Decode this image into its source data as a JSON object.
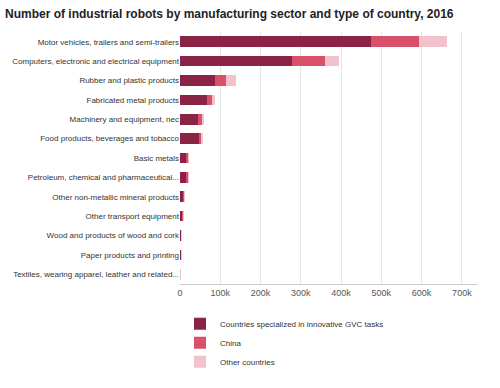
{
  "chart_data": {
    "type": "bar",
    "title": "Number of industrial robots by manufacturing sector and type of country, 2016",
    "orientation": "horizontal",
    "stacked": true,
    "grid": true,
    "legend": "bottom",
    "categories": [
      "Motor vehicles, trailers and semi-trailers",
      "Computers, electronic and electrical equipment",
      "Rubber and plastic products",
      "Fabricated metal products",
      "Machinery and equipment, nec",
      "Food products, beverages and tobacco",
      "Basic metals",
      "Petroleum, chemical and pharmaceutical...",
      "Other non-metallic mineral products",
      "Other transport equipment",
      "Wood and products of wood and cork",
      "Paper products and printing",
      "Textiles, wearing apparel, leather and related..."
    ],
    "series": [
      {
        "name": "Countries specialized in innovative GVC tasks",
        "color": "#8b2346",
        "values": [
          475000,
          278000,
          88000,
          68000,
          45000,
          48000,
          17000,
          17000,
          9000,
          7000,
          3000,
          3000,
          1000
        ]
      },
      {
        "name": "China",
        "color": "#d9506a",
        "values": [
          118000,
          82000,
          25000,
          12000,
          10000,
          5000,
          3000,
          3000,
          2000,
          1000,
          500,
          500,
          300
        ]
      },
      {
        "name": "Other countries",
        "color": "#f2c2cc",
        "values": [
          70000,
          35000,
          27000,
          7000,
          4000,
          3000,
          1000,
          1000,
          1000,
          1000,
          300,
          300,
          200
        ]
      }
    ],
    "xlim": [
      0,
      740000
    ],
    "xticks": [
      0,
      {
        "value": 100000,
        "label": "100k"
      },
      {
        "value": 200000,
        "label": "200k"
      },
      {
        "value": 300000,
        "label": "300k"
      },
      {
        "value": 400000,
        "label": "400k"
      },
      {
        "value": 500000,
        "label": "500k"
      },
      {
        "value": 600000,
        "label": "600k"
      },
      {
        "value": 700000,
        "label": "700k"
      }
    ]
  }
}
